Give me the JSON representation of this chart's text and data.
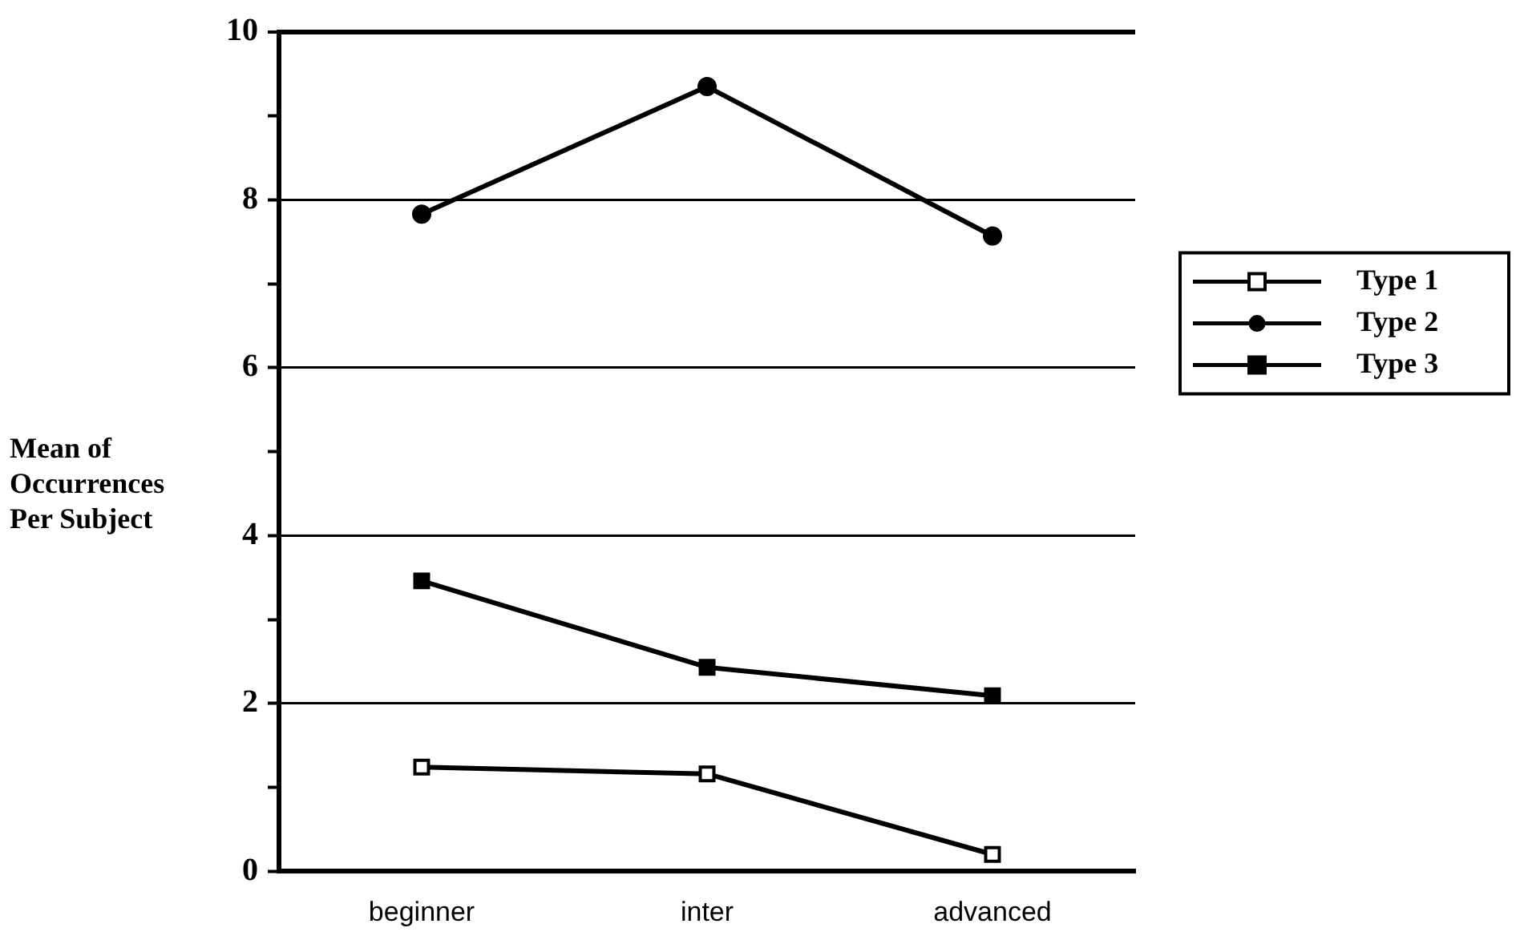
{
  "chart_data": {
    "type": "line",
    "ylabel": "Mean of Occurrences Per Subject",
    "categories": [
      "beginner",
      "inter",
      "advanced"
    ],
    "series": [
      {
        "name": "Type 1",
        "color": "#000000",
        "marker": "square",
        "values": [
          1.24,
          1.16,
          0.2
        ]
      },
      {
        "name": "Type 2",
        "color": "#000000",
        "marker": "circle",
        "values": [
          7.83,
          9.35,
          7.57
        ]
      },
      {
        "name": "Type 3",
        "color": "#000000",
        "marker": "square",
        "values": [
          3.46,
          2.43,
          2.09
        ]
      }
    ],
    "ylim": [
      0,
      10
    ],
    "yticks": [
      0,
      {
        "value": 1,
        "label": null
      },
      2,
      {
        "value": 3,
        "label": null
      },
      4,
      {
        "value": 5,
        "label": null
      },
      6,
      {
        "value": 7,
        "label": null
      },
      8,
      {
        "value": 9,
        "label": null
      },
      10
    ],
    "grid": "y",
    "legend": "right",
    "line_style": "solid"
  }
}
